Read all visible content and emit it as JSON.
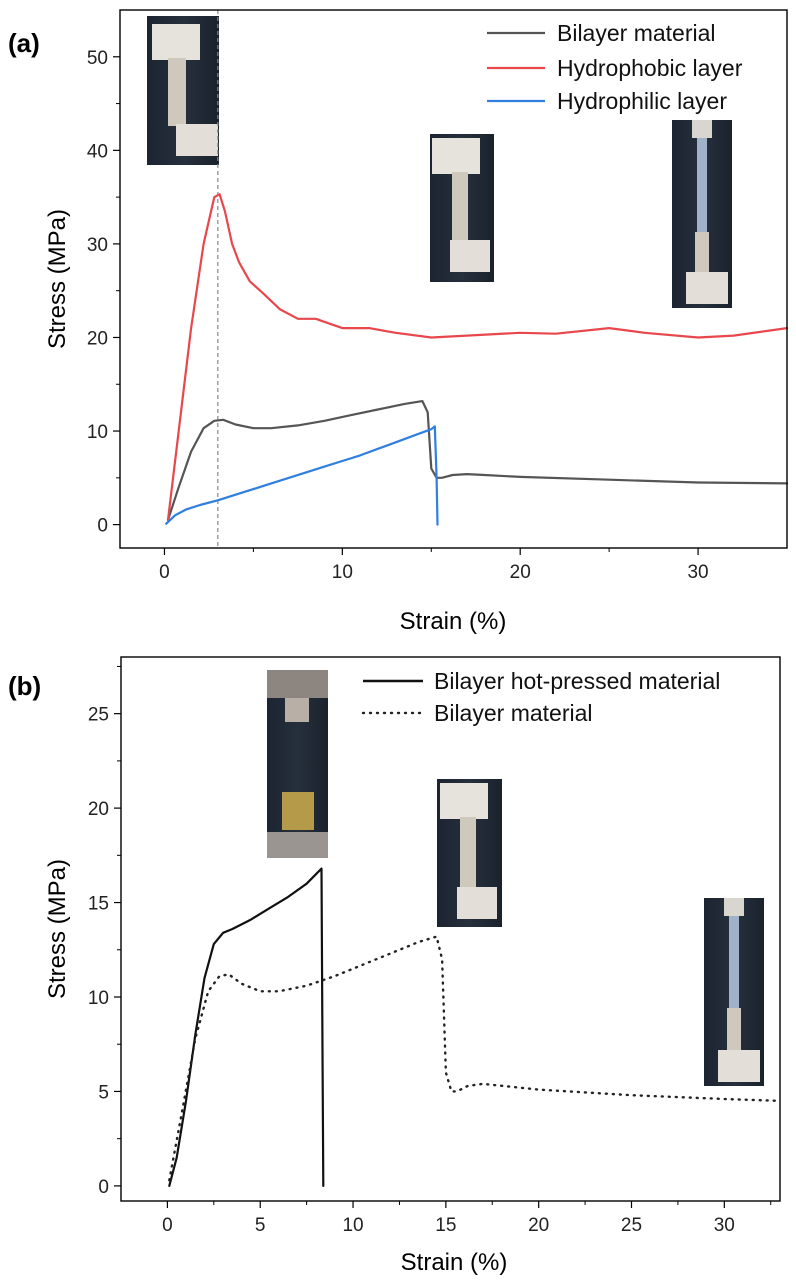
{
  "chart_data": [
    {
      "type": "line",
      "panel_label": "(a)",
      "xlabel": "Strain (%)",
      "ylabel": "Stress (MPa)",
      "xlim": [
        -2.5,
        35
      ],
      "ylim": [
        -2.5,
        55
      ],
      "xticks": [
        0,
        10,
        20,
        30
      ],
      "yticks": [
        0,
        10,
        20,
        30,
        40,
        50
      ],
      "legend_position": "top-right",
      "reference_line_x": 3.0,
      "series": [
        {
          "name": "Bilayer material",
          "color": "#555555",
          "style": "solid",
          "x": [
            0.2,
            0.8,
            1.5,
            2.2,
            2.8,
            3.3,
            4.0,
            5.0,
            6.0,
            7.5,
            9.0,
            10.5,
            12.0,
            13.5,
            14.5,
            14.8,
            15.0,
            15.3,
            15.6,
            16.2,
            17.0,
            18.0,
            20.0,
            25.0,
            30.0,
            35.0
          ],
          "y": [
            0.5,
            4.0,
            7.8,
            10.3,
            11.1,
            11.2,
            10.7,
            10.3,
            10.3,
            10.6,
            11.1,
            11.7,
            12.3,
            12.9,
            13.2,
            12.0,
            6.0,
            5.0,
            5.0,
            5.3,
            5.4,
            5.3,
            5.1,
            4.8,
            4.5,
            4.4
          ]
        },
        {
          "name": "Hydrophobic layer",
          "color": "#e8474c",
          "style": "solid",
          "x": [
            0.2,
            0.8,
            1.5,
            2.2,
            2.8,
            3.1,
            3.4,
            3.8,
            4.2,
            4.8,
            5.5,
            6.5,
            7.5,
            8.5,
            10.0,
            11.5,
            13.0,
            15.0,
            17.0,
            20.0,
            22.0,
            25.0,
            27.0,
            30.0,
            32.0,
            35.0
          ],
          "y": [
            0.5,
            10.0,
            21.0,
            30.0,
            35.0,
            35.3,
            33.5,
            30.0,
            28.0,
            26.0,
            24.8,
            23.0,
            22.0,
            22.0,
            21.0,
            21.0,
            20.5,
            20.0,
            20.2,
            20.5,
            20.4,
            21.0,
            20.5,
            20.0,
            20.2,
            21.0
          ]
        },
        {
          "name": "Hydrophilic layer",
          "color": "#2f7fe0",
          "style": "solid",
          "x": [
            0.1,
            0.6,
            1.2,
            2.0,
            3.0,
            4.0,
            5.0,
            6.0,
            7.0,
            8.0,
            9.0,
            10.0,
            11.0,
            12.0,
            13.0,
            14.0,
            15.0,
            15.2,
            15.3,
            15.35
          ],
          "y": [
            0.1,
            1.0,
            1.6,
            2.1,
            2.6,
            3.2,
            3.8,
            4.4,
            5.0,
            5.6,
            6.2,
            6.8,
            7.4,
            8.1,
            8.8,
            9.5,
            10.2,
            10.5,
            5.0,
            0.0
          ]
        }
      ]
    },
    {
      "type": "line",
      "panel_label": "(b)",
      "xlabel": "Strain (%)",
      "ylabel": "Stress (MPa)",
      "xlim": [
        -2.5,
        33
      ],
      "ylim": [
        -0.8,
        28
      ],
      "xticks": [
        0,
        5,
        10,
        15,
        20,
        25,
        30
      ],
      "yticks": [
        0,
        5,
        10,
        15,
        20,
        25
      ],
      "legend_position": "top-right",
      "series": [
        {
          "name": "Bilayer hot-pressed material",
          "color": "#111111",
          "style": "solid",
          "x": [
            0.1,
            0.5,
            1.0,
            1.5,
            2.0,
            2.5,
            3.0,
            3.5,
            4.5,
            5.5,
            6.5,
            7.5,
            8.1,
            8.3,
            8.35,
            8.4
          ],
          "y": [
            0.0,
            1.5,
            4.5,
            8.0,
            11.0,
            12.8,
            13.4,
            13.6,
            14.1,
            14.7,
            15.3,
            16.0,
            16.6,
            16.8,
            8.0,
            0.0
          ]
        },
        {
          "name": "Bilayer material",
          "color": "#222222",
          "style": "dotted",
          "x": [
            0.1,
            0.8,
            1.5,
            2.2,
            2.8,
            3.3,
            4.0,
            5.0,
            6.0,
            7.5,
            9.0,
            10.5,
            12.0,
            13.5,
            14.5,
            14.8,
            15.0,
            15.3,
            15.6,
            16.2,
            17.0,
            18.0,
            20.0,
            25.0,
            30.0,
            33.0
          ],
          "y": [
            0.3,
            4.0,
            7.8,
            10.3,
            11.1,
            11.2,
            10.7,
            10.3,
            10.3,
            10.6,
            11.1,
            11.7,
            12.3,
            12.9,
            13.2,
            12.0,
            6.0,
            5.0,
            5.0,
            5.3,
            5.4,
            5.3,
            5.1,
            4.8,
            4.6,
            4.5
          ]
        }
      ]
    }
  ]
}
